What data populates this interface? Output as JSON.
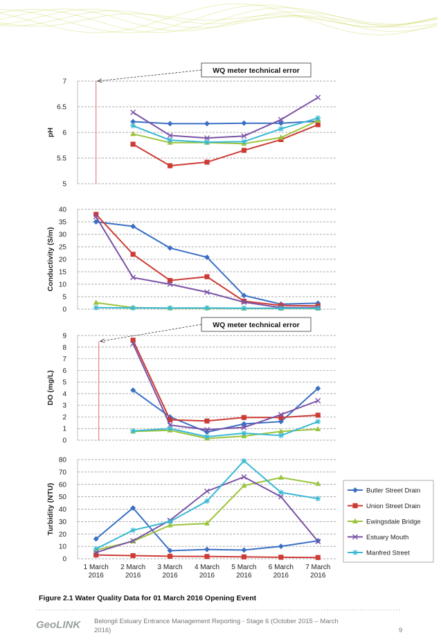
{
  "header_ribbon": {
    "color": "#c8d34a"
  },
  "categories": [
    "1 March\n2016",
    "2 March\n2016",
    "3 March\n2016",
    "4 March\n2016",
    "5 March\n2016",
    "6 March\n2016",
    "7 March\n2016"
  ],
  "series_styles": [
    {
      "name": "Butler Street Drain",
      "color": "#3a6fc4",
      "marker": "diamond"
    },
    {
      "name": "Union Street Drain",
      "color": "#cc3b35",
      "marker": "square"
    },
    {
      "name": "Ewingsdale Bridge",
      "color": "#9bc43c",
      "marker": "triangle"
    },
    {
      "name": "Estuary Mouth",
      "color": "#7a52a6",
      "marker": "cross"
    },
    {
      "name": "Manfred Street",
      "color": "#38b8d4",
      "marker": "star"
    }
  ],
  "chart_data": [
    {
      "type": "line",
      "ylabel": "pH",
      "ylim": [
        5,
        7
      ],
      "yticks": [
        "5",
        "5.5",
        "6",
        "6.5",
        "7"
      ],
      "ytick_values": [
        5,
        5.5,
        6,
        6.5,
        7
      ],
      "grid": true,
      "annotation": {
        "text": "WQ meter technical error",
        "target_x_index": 0,
        "target_y": 7,
        "error_line_from": 5,
        "error_line_to": 7
      },
      "series": [
        {
          "name": "Butler Street Drain",
          "values": [
            null,
            6.21,
            6.17,
            6.17,
            6.18,
            6.18,
            6.22
          ]
        },
        {
          "name": "Union Street Drain",
          "values": [
            null,
            5.77,
            5.35,
            5.42,
            5.65,
            5.86,
            6.15
          ]
        },
        {
          "name": "Ewingsdale Bridge",
          "values": [
            null,
            5.97,
            5.8,
            5.8,
            5.78,
            5.9,
            6.23
          ]
        },
        {
          "name": "Estuary Mouth",
          "values": [
            null,
            6.39,
            5.94,
            5.89,
            5.93,
            6.25,
            6.68
          ]
        },
        {
          "name": "Manfred Street",
          "values": [
            null,
            6.13,
            5.85,
            5.81,
            5.82,
            6.07,
            6.28
          ]
        }
      ]
    },
    {
      "type": "line",
      "ylabel": "Conductivity (S/m)",
      "ylim": [
        0,
        40
      ],
      "yticks": [
        "0",
        "5",
        "10",
        "15",
        "20",
        "25",
        "30",
        "35",
        "40"
      ],
      "ytick_values": [
        0,
        5,
        10,
        15,
        20,
        25,
        30,
        35,
        40
      ],
      "grid": true,
      "series": [
        {
          "name": "Butler Street Drain",
          "values": [
            35,
            33.2,
            24.5,
            20.8,
            5.5,
            2.0,
            2.4
          ]
        },
        {
          "name": "Union Street Drain",
          "values": [
            38,
            22,
            11.5,
            13,
            3.2,
            1.5,
            1.3
          ]
        },
        {
          "name": "Ewingsdale Bridge",
          "values": [
            2.6,
            0.6,
            0.4,
            0.4,
            0.3,
            0.3,
            0.3
          ]
        },
        {
          "name": "Estuary Mouth",
          "values": [
            37,
            12.7,
            10,
            6.8,
            2.8,
            0.6,
            0.6
          ]
        },
        {
          "name": "Manfred Street",
          "values": [
            0.6,
            0.5,
            0.5,
            0.5,
            0.4,
            0.4,
            0.4
          ]
        }
      ]
    },
    {
      "type": "line",
      "ylabel": "DO (mg/L)",
      "ylim": [
        0,
        9
      ],
      "yticks": [
        "0",
        "1",
        "2",
        "3",
        "4",
        "5",
        "6",
        "7",
        "8",
        "9"
      ],
      "ytick_values": [
        0,
        1,
        2,
        3,
        4,
        5,
        6,
        7,
        8,
        9
      ],
      "grid": true,
      "annotation": {
        "text": "WQ meter technical error",
        "target_x_index": 0,
        "target_y": 8.5,
        "error_line_from": 0,
        "error_line_to": 8.5
      },
      "series": [
        {
          "name": "Butler Street Drain",
          "values": [
            null,
            4.3,
            2.0,
            0.7,
            1.4,
            1.6,
            4.45
          ]
        },
        {
          "name": "Union Street Drain",
          "values": [
            null,
            8.6,
            1.75,
            1.65,
            1.95,
            1.95,
            2.15
          ]
        },
        {
          "name": "Ewingsdale Bridge",
          "values": [
            null,
            0.75,
            0.85,
            0.15,
            0.35,
            0.75,
            0.95
          ]
        },
        {
          "name": "Estuary Mouth",
          "values": [
            null,
            8.3,
            1.3,
            0.9,
            1.1,
            2.2,
            3.4
          ]
        },
        {
          "name": "Manfred Street",
          "values": [
            null,
            0.8,
            1.0,
            0.3,
            0.6,
            0.4,
            1.6
          ]
        }
      ]
    },
    {
      "type": "line",
      "ylabel": "Turbidity (NTU)",
      "ylim": [
        0,
        80
      ],
      "yticks": [
        "0",
        "10",
        "20",
        "30",
        "40",
        "50",
        "60",
        "70",
        "80"
      ],
      "ytick_values": [
        0,
        10,
        20,
        30,
        40,
        50,
        60,
        70,
        80
      ],
      "grid": true,
      "legend": "right",
      "series": [
        {
          "name": "Butler Street Drain",
          "values": [
            16,
            41,
            6.5,
            7.5,
            7,
            10,
            14.5
          ]
        },
        {
          "name": "Union Street Drain",
          "values": [
            3,
            2.5,
            2,
            1.8,
            1.5,
            1.2,
            1
          ]
        },
        {
          "name": "Ewingsdale Bridge",
          "values": [
            7,
            14,
            27,
            28.5,
            59,
            65.5,
            60.5
          ]
        },
        {
          "name": "Estuary Mouth",
          "values": [
            5,
            14.5,
            31,
            54.5,
            66,
            50,
            14
          ]
        },
        {
          "name": "Manfred Street",
          "values": [
            8,
            23,
            30,
            46.5,
            79,
            53.5,
            48.5
          ]
        }
      ]
    }
  ],
  "caption": "Figure 2.1   Water Quality Data for 01 March 2016 Opening Event",
  "footer": {
    "logo": "GeoLINK",
    "line1": "Belongil Estuary Entrance Management Reporting - Stage 6 (October 2015 – March",
    "line2": "2016)",
    "page_number": "9"
  }
}
